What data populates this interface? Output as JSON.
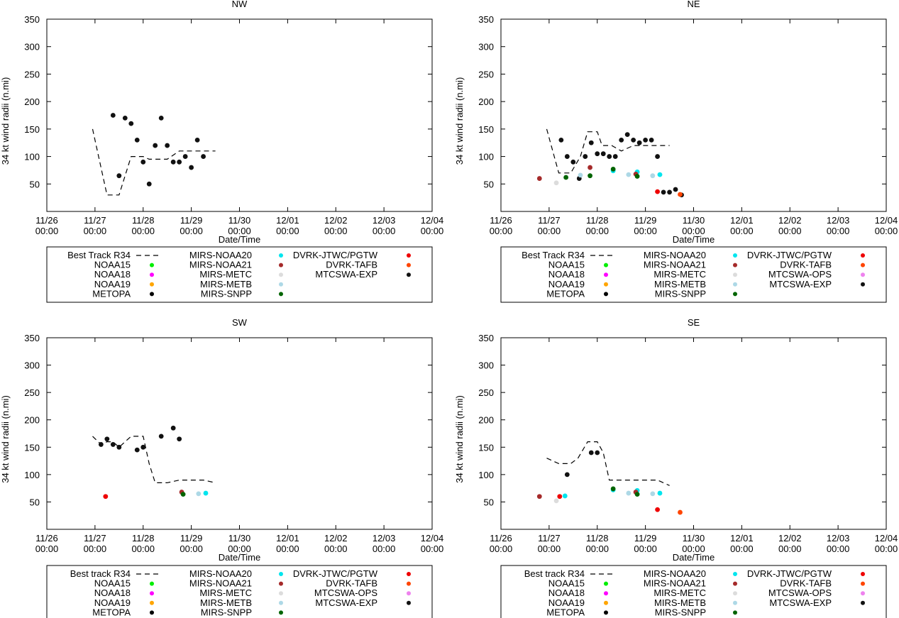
{
  "common": {
    "xlabel": "Date/Time",
    "ylabel": "34 kt wind radii (n.mi)",
    "ylim": [
      0,
      350
    ],
    "yticks": [
      50,
      100,
      150,
      200,
      250,
      300,
      350
    ],
    "xlim": [
      0,
      8
    ],
    "xticks": [
      {
        "x": 0,
        "l1": "11/26",
        "l2": "00:00"
      },
      {
        "x": 1,
        "l1": "11/27",
        "l2": "00:00"
      },
      {
        "x": 2,
        "l1": "11/28",
        "l2": "00:00"
      },
      {
        "x": 3,
        "l1": "11/29",
        "l2": "00:00"
      },
      {
        "x": 4,
        "l1": "11/30",
        "l2": "00:00"
      },
      {
        "x": 5,
        "l1": "12/01",
        "l2": "00:00"
      },
      {
        "x": 6,
        "l1": "12/02",
        "l2": "00:00"
      },
      {
        "x": 7,
        "l1": "12/03",
        "l2": "00:00"
      },
      {
        "x": 8,
        "l1": "12/04",
        "l2": "00:00"
      }
    ],
    "x_unit": "days since 11/26 00:00"
  },
  "colors": {
    "NOAA15": "#00ee00",
    "NOAA18": "#ff00ff",
    "NOAA19": "#ffa500",
    "METOPA": "#000000",
    "MIRS-NOAA20": "#00e5ee",
    "MIRS-NOAA21": "#a52a2a",
    "MIRS-METC": "#dcdcdc",
    "MIRS-METB": "#add8e6",
    "MIRS-SNPP": "#006400",
    "DVRK-JTWC/PGTW": "#ee0000",
    "DVRK-TAFB": "#ff4500",
    "MTCSWA-OPS": "#ee82ee",
    "MTCSWA-EXP": "#111111"
  },
  "chart_data": [
    {
      "id": "nw",
      "type": "scatter",
      "title": "NW",
      "best_track": {
        "label": "Best Track R34",
        "x": [
          0.95,
          1.25,
          1.5,
          1.75,
          1.875,
          2.0,
          2.125,
          2.25,
          2.375,
          2.5,
          2.75,
          3.0,
          3.25,
          3.5
        ],
        "y": [
          150,
          30,
          30,
          100,
          100,
          100,
          95,
          95,
          95,
          95,
          110,
          110,
          110,
          110
        ]
      },
      "legend": [
        [
          "NOAA15",
          "NOAA18",
          "NOAA19",
          "METOPA"
        ],
        [
          "MIRS-NOAA20",
          "MIRS-NOAA21",
          "MIRS-METC",
          "MIRS-METB",
          "MIRS-SNPP"
        ],
        [
          "DVRK-JTWC/PGTW",
          "DVRK-TAFB",
          "MTCSWA-EXP"
        ]
      ],
      "points": [
        {
          "s": "MTCSWA-EXP",
          "x": 1.375,
          "y": 175
        },
        {
          "s": "MTCSWA-EXP",
          "x": 1.5,
          "y": 65
        },
        {
          "s": "MTCSWA-EXP",
          "x": 1.625,
          "y": 170
        },
        {
          "s": "MTCSWA-EXP",
          "x": 1.75,
          "y": 160
        },
        {
          "s": "MTCSWA-EXP",
          "x": 1.875,
          "y": 130
        },
        {
          "s": "MTCSWA-EXP",
          "x": 2.0,
          "y": 90
        },
        {
          "s": "MTCSWA-EXP",
          "x": 2.125,
          "y": 50
        },
        {
          "s": "MTCSWA-EXP",
          "x": 2.25,
          "y": 120
        },
        {
          "s": "MTCSWA-EXP",
          "x": 2.375,
          "y": 170
        },
        {
          "s": "MTCSWA-EXP",
          "x": 2.5,
          "y": 120
        },
        {
          "s": "MTCSWA-EXP",
          "x": 2.625,
          "y": 90
        },
        {
          "s": "MTCSWA-EXP",
          "x": 2.75,
          "y": 90
        },
        {
          "s": "MTCSWA-EXP",
          "x": 2.875,
          "y": 100
        },
        {
          "s": "MTCSWA-EXP",
          "x": 3.0,
          "y": 80
        },
        {
          "s": "MTCSWA-EXP",
          "x": 3.125,
          "y": 130
        },
        {
          "s": "MTCSWA-EXP",
          "x": 3.25,
          "y": 100
        }
      ]
    },
    {
      "id": "ne",
      "type": "scatter",
      "title": "NE",
      "best_track": {
        "label": "Best Track R34",
        "x": [
          0.95,
          1.2,
          1.45,
          1.65,
          1.8,
          2.0,
          2.1,
          2.3,
          2.5,
          2.75,
          3.0,
          3.25,
          3.5
        ],
        "y": [
          150,
          70,
          70,
          100,
          145,
          145,
          120,
          120,
          110,
          120,
          120,
          120,
          120
        ]
      },
      "legend": [
        [
          "NOAA15",
          "NOAA18",
          "NOAA19",
          "METOPA"
        ],
        [
          "MIRS-NOAA20",
          "MIRS-NOAA21",
          "MIRS-METC",
          "MIRS-METB",
          "MIRS-SNPP"
        ],
        [
          "DVRK-JTWC/PGTW",
          "DVRK-TAFB",
          "MTCSWA-OPS",
          "MTCSWA-EXP"
        ]
      ],
      "points": [
        {
          "s": "MIRS-NOAA21",
          "x": 0.8,
          "y": 60
        },
        {
          "s": "MIRS-METC",
          "x": 1.15,
          "y": 52
        },
        {
          "s": "MTCSWA-EXP",
          "x": 1.25,
          "y": 130
        },
        {
          "s": "MTCSWA-EXP",
          "x": 1.375,
          "y": 100
        },
        {
          "s": "MTCSWA-EXP",
          "x": 1.5,
          "y": 90
        },
        {
          "s": "MTCSWA-EXP",
          "x": 1.625,
          "y": 60
        },
        {
          "s": "MTCSWA-EXP",
          "x": 1.75,
          "y": 100
        },
        {
          "s": "MTCSWA-EXP",
          "x": 1.875,
          "y": 125
        },
        {
          "s": "MTCSWA-EXP",
          "x": 2.0,
          "y": 105
        },
        {
          "s": "MTCSWA-EXP",
          "x": 2.125,
          "y": 105
        },
        {
          "s": "MTCSWA-EXP",
          "x": 2.25,
          "y": 100
        },
        {
          "s": "MTCSWA-EXP",
          "x": 2.375,
          "y": 100
        },
        {
          "s": "MTCSWA-EXP",
          "x": 2.5,
          "y": 130
        },
        {
          "s": "MTCSWA-EXP",
          "x": 2.625,
          "y": 140
        },
        {
          "s": "MTCSWA-EXP",
          "x": 2.75,
          "y": 130
        },
        {
          "s": "MTCSWA-EXP",
          "x": 2.875,
          "y": 125
        },
        {
          "s": "MTCSWA-EXP",
          "x": 3.0,
          "y": 130
        },
        {
          "s": "MTCSWA-EXP",
          "x": 3.125,
          "y": 130
        },
        {
          "s": "MTCSWA-EXP",
          "x": 3.25,
          "y": 100
        },
        {
          "s": "MTCSWA-EXP",
          "x": 3.375,
          "y": 35
        },
        {
          "s": "MTCSWA-EXP",
          "x": 3.5,
          "y": 35
        },
        {
          "s": "MTCSWA-EXP",
          "x": 3.625,
          "y": 40
        },
        {
          "s": "MTCSWA-EXP",
          "x": 3.75,
          "y": 30
        },
        {
          "s": "MIRS-SNPP",
          "x": 1.35,
          "y": 62
        },
        {
          "s": "MIRS-METB",
          "x": 1.65,
          "y": 66
        },
        {
          "s": "MIRS-NOAA21",
          "x": 1.85,
          "y": 80
        },
        {
          "s": "MIRS-SNPP",
          "x": 1.85,
          "y": 65
        },
        {
          "s": "MIRS-NOAA20",
          "x": 2.33,
          "y": 74
        },
        {
          "s": "MIRS-SNPP",
          "x": 2.33,
          "y": 77
        },
        {
          "s": "MIRS-METB",
          "x": 2.65,
          "y": 67
        },
        {
          "s": "MIRS-NOAA20",
          "x": 2.83,
          "y": 72
        },
        {
          "s": "MIRS-NOAA21",
          "x": 2.8,
          "y": 68
        },
        {
          "s": "MIRS-SNPP",
          "x": 2.83,
          "y": 64
        },
        {
          "s": "MIRS-METB",
          "x": 3.15,
          "y": 65
        },
        {
          "s": "MIRS-NOAA20",
          "x": 3.3,
          "y": 67
        },
        {
          "s": "DVRK-JTWC/PGTW",
          "x": 3.25,
          "y": 36
        },
        {
          "s": "DVRK-TAFB",
          "x": 3.72,
          "y": 31
        }
      ]
    },
    {
      "id": "sw",
      "type": "scatter",
      "title": "SW",
      "best_track": {
        "label": "Best track R34",
        "x": [
          0.95,
          1.125,
          1.25,
          1.375,
          1.5,
          1.75,
          1.875,
          2.0,
          2.125,
          2.25,
          2.5,
          2.75,
          3.0,
          3.25,
          3.5
        ],
        "y": [
          170,
          155,
          160,
          160,
          150,
          170,
          170,
          170,
          120,
          85,
          85,
          90,
          90,
          90,
          85
        ]
      },
      "legend": [
        [
          "NOAA15",
          "NOAA18",
          "NOAA19",
          "METOPA"
        ],
        [
          "MIRS-NOAA20",
          "MIRS-NOAA21",
          "MIRS-METC",
          "MIRS-METB",
          "MIRS-SNPP"
        ],
        [
          "DVRK-JTWC/PGTW",
          "DVRK-TAFB",
          "MTCSWA-OPS",
          "MTCSWA-EXP"
        ]
      ],
      "points": [
        {
          "s": "MTCSWA-EXP",
          "x": 1.125,
          "y": 155
        },
        {
          "s": "MTCSWA-EXP",
          "x": 1.25,
          "y": 165
        },
        {
          "s": "MTCSWA-EXP",
          "x": 1.375,
          "y": 155
        },
        {
          "s": "MTCSWA-EXP",
          "x": 1.5,
          "y": 150
        },
        {
          "s": "MTCSWA-EXP",
          "x": 1.875,
          "y": 145
        },
        {
          "s": "MTCSWA-EXP",
          "x": 2.0,
          "y": 150
        },
        {
          "s": "MTCSWA-EXP",
          "x": 2.375,
          "y": 170
        },
        {
          "s": "MTCSWA-EXP",
          "x": 2.625,
          "y": 185
        },
        {
          "s": "MTCSWA-EXP",
          "x": 2.75,
          "y": 165
        },
        {
          "s": "DVRK-JTWC/PGTW",
          "x": 1.22,
          "y": 60
        },
        {
          "s": "MIRS-NOAA21",
          "x": 2.8,
          "y": 68
        },
        {
          "s": "MIRS-SNPP",
          "x": 2.83,
          "y": 64
        },
        {
          "s": "MIRS-METB",
          "x": 3.15,
          "y": 65
        },
        {
          "s": "MIRS-NOAA20",
          "x": 3.3,
          "y": 66
        }
      ]
    },
    {
      "id": "se",
      "type": "scatter",
      "title": "SE",
      "best_track": {
        "label": "Best track R34",
        "x": [
          0.95,
          1.2,
          1.3,
          1.45,
          1.6,
          1.8,
          2.0,
          2.125,
          2.25,
          2.5,
          2.75,
          3.0,
          3.25,
          3.5
        ],
        "y": [
          130,
          120,
          120,
          120,
          130,
          160,
          160,
          140,
          90,
          90,
          90,
          90,
          90,
          80
        ]
      },
      "legend": [
        [
          "NOAA15",
          "NOAA18",
          "NOAA19",
          "METOPA"
        ],
        [
          "MIRS-NOAA20",
          "MIRS-NOAA21",
          "MIRS-METC",
          "MIRS-METB",
          "MIRS-SNPP"
        ],
        [
          "DVRK-JTWC/PGTW",
          "DVRK-TAFB",
          "MTCSWA-OPS",
          "MTCSWA-EXP"
        ]
      ],
      "points": [
        {
          "s": "MIRS-NOAA21",
          "x": 0.8,
          "y": 60
        },
        {
          "s": "MIRS-METC",
          "x": 1.15,
          "y": 52
        },
        {
          "s": "DVRK-JTWC/PGTW",
          "x": 1.22,
          "y": 60
        },
        {
          "s": "MIRS-NOAA20",
          "x": 1.33,
          "y": 61
        },
        {
          "s": "MTCSWA-EXP",
          "x": 1.375,
          "y": 100
        },
        {
          "s": "MTCSWA-EXP",
          "x": 1.875,
          "y": 140
        },
        {
          "s": "MTCSWA-EXP",
          "x": 2.0,
          "y": 140
        },
        {
          "s": "MIRS-NOAA20",
          "x": 2.33,
          "y": 72
        },
        {
          "s": "MIRS-SNPP",
          "x": 2.33,
          "y": 74
        },
        {
          "s": "MIRS-METB",
          "x": 2.65,
          "y": 66
        },
        {
          "s": "MIRS-NOAA20",
          "x": 2.83,
          "y": 71
        },
        {
          "s": "MIRS-NOAA21",
          "x": 2.8,
          "y": 68
        },
        {
          "s": "MIRS-SNPP",
          "x": 2.83,
          "y": 64
        },
        {
          "s": "MIRS-METB",
          "x": 3.15,
          "y": 65
        },
        {
          "s": "MIRS-NOAA20",
          "x": 3.3,
          "y": 66
        },
        {
          "s": "DVRK-JTWC/PGTW",
          "x": 3.25,
          "y": 36
        },
        {
          "s": "DVRK-TAFB",
          "x": 3.72,
          "y": 31
        }
      ]
    }
  ]
}
